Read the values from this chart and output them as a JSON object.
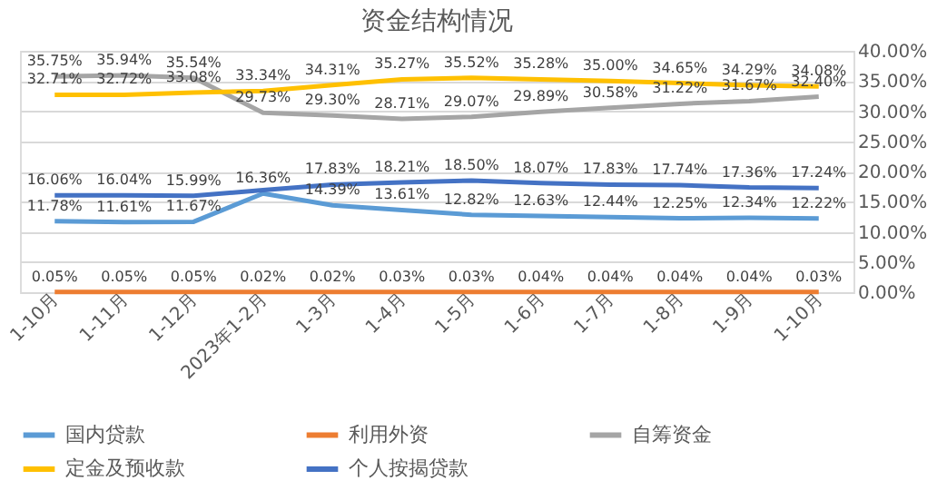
{
  "chart_data": {
    "type": "line",
    "title": "资金结构情况",
    "categories": [
      "1-10月",
      "1-11月",
      "1-12月",
      "2023年1-2月",
      "1-3月",
      "1-4月",
      "1-5月",
      "1-6月",
      "1-7月",
      "1-8月",
      "1-9月",
      "1-10月"
    ],
    "series": [
      {
        "name": "国内贷款",
        "color": "#5b9bd5",
        "values": [
          11.78,
          11.61,
          11.67,
          16.36,
          14.39,
          13.61,
          12.82,
          12.63,
          12.44,
          12.25,
          12.34,
          12.22
        ],
        "value_labels": [
          "11.78%",
          "11.61%",
          "11.67%",
          "16.36%",
          "14.39%",
          "13.61%",
          "12.82%",
          "12.63%",
          "12.44%",
          "12.25%",
          "12.34%",
          "12.22%"
        ]
      },
      {
        "name": "利用外资",
        "color": "#ed7d31",
        "values": [
          0.05,
          0.05,
          0.05,
          0.02,
          0.02,
          0.03,
          0.03,
          0.04,
          0.04,
          0.04,
          0.04,
          0.03
        ],
        "value_labels": [
          "0.05%",
          "0.05%",
          "0.05%",
          "0.02%",
          "0.02%",
          "0.03%",
          "0.03%",
          "0.04%",
          "0.04%",
          "0.04%",
          "0.04%",
          "0.03%"
        ]
      },
      {
        "name": "自筹资金",
        "color": "#a5a5a5",
        "values": [
          35.75,
          35.94,
          35.54,
          29.73,
          29.3,
          28.71,
          29.07,
          29.89,
          30.58,
          31.22,
          31.67,
          32.4
        ],
        "value_labels": [
          "35.75%",
          "35.94%",
          "35.54%",
          "29.73%",
          "29.30%",
          "28.71%",
          "29.07%",
          "29.89%",
          "30.58%",
          "31.22%",
          "31.67%",
          "32.40%"
        ]
      },
      {
        "name": "定金及预收款",
        "color": "#ffc000",
        "values": [
          32.71,
          32.72,
          33.08,
          33.34,
          34.31,
          35.27,
          35.52,
          35.28,
          35.0,
          34.65,
          34.29,
          34.08
        ],
        "value_labels": [
          "32.71%",
          "32.72%",
          "33.08%",
          "33.34%",
          "34.31%",
          "35.27%",
          "35.52%",
          "35.28%",
          "35.00%",
          "34.65%",
          "34.29%",
          "34.08%"
        ]
      },
      {
        "name": "个人按揭贷款",
        "color": "#4472c4",
        "values": [
          16.06,
          16.04,
          15.99,
          16.9,
          17.83,
          18.21,
          18.5,
          18.07,
          17.83,
          17.74,
          17.36,
          17.24
        ],
        "value_labels": [
          "16.06%",
          "16.04%",
          "15.99%",
          null,
          "17.83%",
          "18.21%",
          "18.50%",
          "18.07%",
          "17.83%",
          "17.74%",
          "17.36%",
          "17.24%"
        ]
      }
    ],
    "ylim": [
      0,
      40
    ],
    "yticks": [
      {
        "value": 0,
        "label": "0.00%"
      },
      {
        "value": 5,
        "label": "5.00%"
      },
      {
        "value": 10,
        "label": "10.00%"
      },
      {
        "value": 15,
        "label": "15.00%"
      },
      {
        "value": 20,
        "label": "20.00%"
      },
      {
        "value": 25,
        "label": "25.00%"
      },
      {
        "value": 30,
        "label": "30.00%"
      },
      {
        "value": 35,
        "label": "35.00%"
      },
      {
        "value": 40,
        "label": "40.00%"
      }
    ],
    "grid": "y",
    "legend": "bottom",
    "marker": "none",
    "line_style": "solid"
  }
}
